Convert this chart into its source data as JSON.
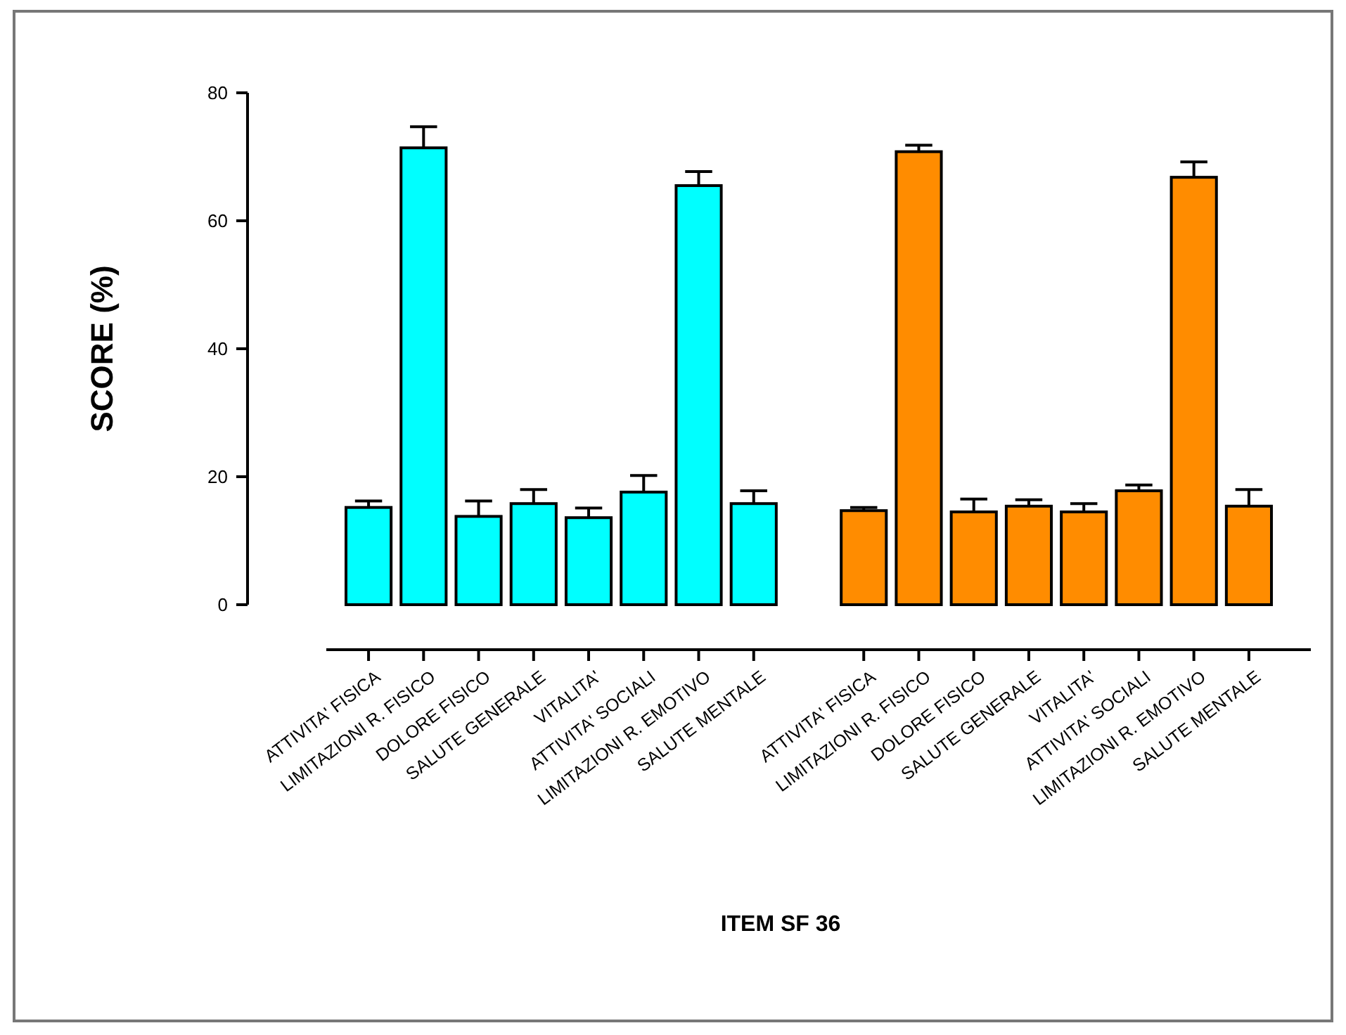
{
  "chart_data": {
    "type": "bar",
    "xlabel": "ITEM SF 36",
    "ylabel": "SCORE (%)",
    "categories": [
      "ATTIVITA' FISICA",
      "LIMITAZIONI R. FISICO",
      "DOLORE FISICO",
      "SALUTE GENERALE",
      "VITALITA'",
      "ATTIVITA' SOCIALI",
      "LIMITAZIONI R. EMOTIVO",
      "SALUTE MENTALE",
      null,
      "ATTIVITA' FISICA",
      "LIMITAZIONI R. FISICO",
      "DOLORE FISICO",
      "SALUTE GENERALE",
      "VITALITA'",
      "ATTIVITA' SOCIALI",
      "LIMITAZIONI R. EMOTIVO",
      "SALUTE MENTALE"
    ],
    "values": [
      15.2,
      71.4,
      13.8,
      15.8,
      13.6,
      17.6,
      65.5,
      15.8,
      null,
      14.7,
      70.8,
      14.5,
      15.4,
      14.5,
      17.8,
      66.8,
      15.4
    ],
    "colors": [
      "#00ffff",
      "#00ffff",
      "#00ffff",
      "#00ffff",
      "#00ffff",
      "#00ffff",
      "#00ffff",
      "#00ffff",
      null,
      "#ff8c00",
      "#ff8c00",
      "#ff8c00",
      "#ff8c00",
      "#ff8c00",
      "#ff8c00",
      "#ff8c00",
      "#ff8c00"
    ],
    "errors": [
      [
        15.2,
        16.2
      ],
      [
        71.4,
        74.7
      ],
      [
        13.8,
        16.2
      ],
      [
        15.8,
        18
      ],
      [
        13.6,
        15.1
      ],
      [
        17.6,
        20.2
      ],
      [
        65.5,
        67.7
      ],
      [
        15.8,
        17.8
      ],
      null,
      [
        14.7,
        15.2
      ],
      [
        70.8,
        71.8
      ],
      [
        14.5,
        16.5
      ],
      [
        15.4,
        16.4
      ],
      [
        14.5,
        15.8
      ],
      [
        17.8,
        18.7
      ],
      [
        66.8,
        69.2
      ],
      [
        15.4,
        18
      ]
    ],
    "ylim": [
      0,
      80
    ],
    "yticks": [
      0,
      20,
      40,
      60,
      80
    ],
    "grid": false
  }
}
